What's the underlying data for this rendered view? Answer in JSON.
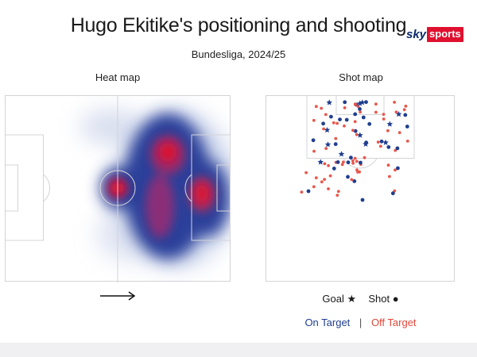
{
  "header": {
    "title": "Hugo Ekitike's positioning and shooting",
    "subtitle": "Bundesliga, 2024/25"
  },
  "brand": {
    "sky": "sky",
    "sports": "sports"
  },
  "panels": {
    "heatmap_label": "Heat map",
    "shotmap_label": "Shot map"
  },
  "legend": {
    "goal_label": "Goal",
    "goal_symbol": "★",
    "shot_label": "Shot",
    "shot_symbol": "●",
    "on_target_label": "On Target",
    "separator": "|",
    "off_target_label": "Off Target"
  },
  "colors": {
    "on_target": "#1f3e8f",
    "off_target": "#e8564a",
    "heat_low": "#d9e0f0",
    "heat_mid": "#243b96",
    "heat_high": "#e0102f",
    "pitch_line": "#d4d4d8"
  },
  "icons": {
    "direction": "right-arrow-icon"
  }
}
